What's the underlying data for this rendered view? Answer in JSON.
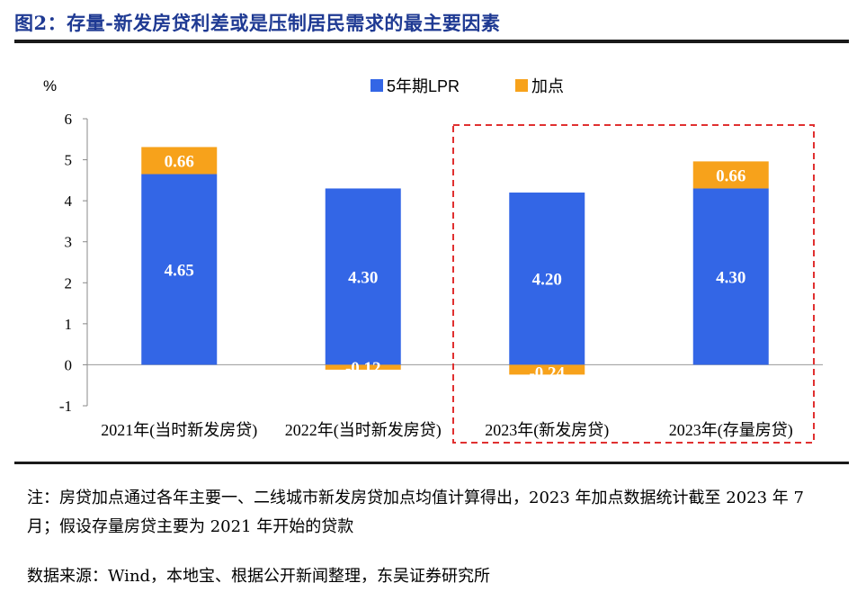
{
  "header": {
    "title": "图2：存量-新发房贷利差或是压制居民需求的最主要因素"
  },
  "chart_data": {
    "type": "bar",
    "stacked": true,
    "unit": "%",
    "categories": [
      "2021年(当时新发房贷)",
      "2022年(当时新发房贷)",
      "2023年(新发房贷)",
      "2023年(存量房贷)"
    ],
    "series": [
      {
        "name": "5年期LPR",
        "color": "#3366e6",
        "values": [
          4.65,
          4.3,
          4.2,
          4.3
        ],
        "labels": [
          "4.65",
          "4.30",
          "4.20",
          "4.30"
        ]
      },
      {
        "name": "加点",
        "color": "#f7a21b",
        "values": [
          0.66,
          -0.12,
          -0.24,
          0.66
        ],
        "labels": [
          "0.66",
          "-0.12",
          "-0.24",
          "0.66"
        ]
      }
    ],
    "ylim": [
      -1,
      6
    ],
    "yticks": [
      "-1",
      "0",
      "1",
      "2",
      "3",
      "4",
      "5",
      "6"
    ],
    "highlight_categories": [
      2,
      3
    ],
    "legend_position": "top"
  },
  "notes": {
    "note": "注：房贷加点通过各年主要一、二线城市新发房贷加点均值计算得出，2023 年加点数据统计截至 2023 年 7 月；假设存量房贷主要为 2021 年开始的贷款",
    "source": "数据来源：Wind，本地宝、根据公开新闻整理，东吴证券研究所"
  }
}
